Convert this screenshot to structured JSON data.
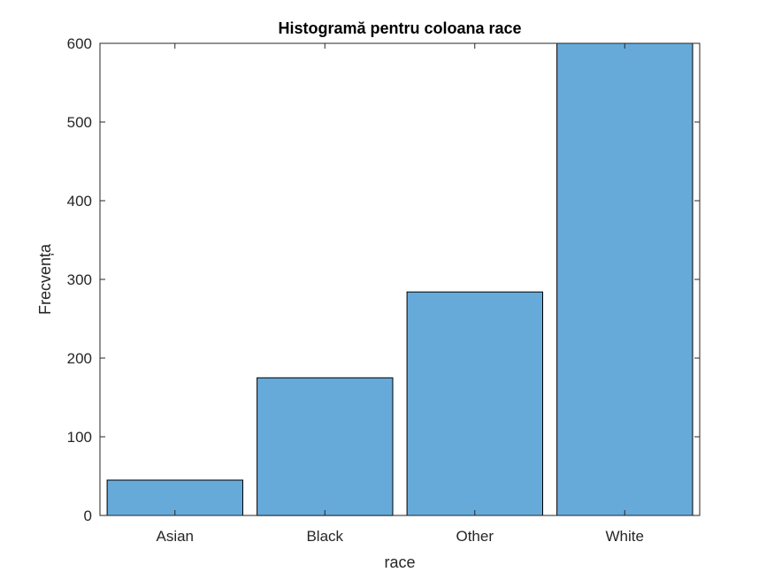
{
  "chart_data": {
    "type": "bar",
    "title": "Histogramă pentru coloana race",
    "xlabel": "race",
    "ylabel": "Frecvența",
    "categories": [
      "Asian",
      "Black",
      "Other",
      "White"
    ],
    "values": [
      45,
      175,
      284,
      600
    ],
    "ylim": [
      0,
      600
    ],
    "yticks": [
      "0",
      "100",
      "200",
      "300",
      "400",
      "500",
      "600"
    ],
    "grid": false,
    "legend": "none",
    "colors": {
      "bar_fill": "#66AADA",
      "bar_edge": "#000000",
      "axis": "#262626"
    }
  }
}
